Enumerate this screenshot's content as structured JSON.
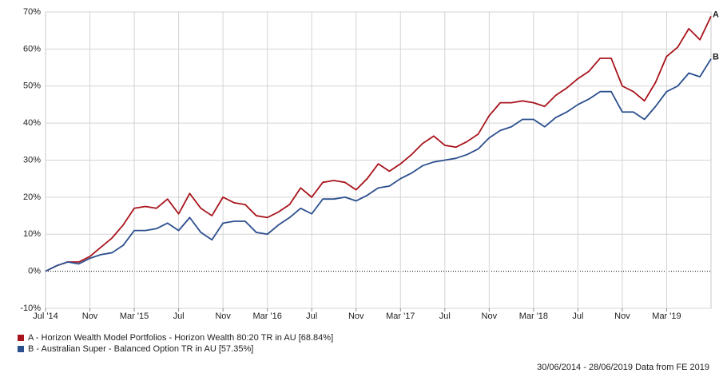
{
  "chart_data": {
    "type": "line",
    "categories": [
      "Jul '14",
      null,
      null,
      null,
      "Nov",
      null,
      null,
      null,
      "Mar '15",
      null,
      null,
      null,
      "Jul",
      null,
      null,
      null,
      "Nov",
      null,
      null,
      null,
      "Mar '16",
      null,
      null,
      null,
      "Jul",
      null,
      null,
      null,
      "Nov",
      null,
      null,
      null,
      "Mar '17",
      null,
      null,
      null,
      "Jul",
      null,
      null,
      null,
      "Nov",
      null,
      null,
      null,
      "Mar '18",
      null,
      null,
      null,
      "Jul",
      null,
      null,
      null,
      "Nov",
      null,
      null,
      null,
      "Mar '19",
      null,
      null,
      null,
      null
    ],
    "series": [
      {
        "name": "A - Horizon Wealth Model Portfolios - Horizon Wealth 80:20 TR in AU [68.84%]",
        "end_label": "A",
        "color": "#a8141c",
        "values": [
          0,
          1.5,
          2.5,
          2.5,
          4,
          6.5,
          9,
          12.5,
          17,
          17.5,
          17,
          19.5,
          15.5,
          21,
          17,
          15,
          20,
          18.5,
          18,
          15,
          14.5,
          16,
          18,
          22.5,
          20,
          24,
          24.5,
          24,
          22,
          25,
          29,
          27,
          29,
          31.5,
          34.5,
          36.5,
          34,
          33.5,
          35,
          37,
          42,
          45.5,
          45.5,
          46,
          45.5,
          44.5,
          47.5,
          49.5,
          52,
          54,
          57.5,
          57.5,
          50,
          48.5,
          46,
          51,
          58,
          60.5,
          65.5,
          62.5,
          68.84
        ]
      },
      {
        "name": "B - Australian Super - Balanced Option TR in AU [57.35%]",
        "end_label": "B",
        "color": "#2c4f8e",
        "values": [
          0,
          1.5,
          2.5,
          2,
          3.5,
          4.5,
          5,
          7,
          11,
          11,
          11.5,
          13,
          11,
          14.5,
          10.5,
          8.5,
          13,
          13.5,
          13.5,
          10.5,
          10,
          12.5,
          14.5,
          17,
          15.5,
          19.5,
          19.5,
          20,
          19,
          20.5,
          22.5,
          23,
          25,
          26.5,
          28.5,
          29.5,
          30,
          30.5,
          31.5,
          33,
          36,
          38,
          39,
          41,
          41,
          39,
          41.5,
          43,
          45,
          46.5,
          48.5,
          48.5,
          43,
          43,
          41,
          44.5,
          48.5,
          50,
          53.5,
          52.5,
          57.35
        ]
      }
    ],
    "ylim": [
      -10,
      70
    ],
    "yticks": [
      {
        "value": -10,
        "label": "-10%"
      },
      {
        "value": 0,
        "label": "0%"
      },
      {
        "value": 10,
        "label": "10%"
      },
      {
        "value": 20,
        "label": "20%"
      },
      {
        "value": 30,
        "label": "30%"
      },
      {
        "value": 40,
        "label": "40%"
      },
      {
        "value": 50,
        "label": "50%"
      },
      {
        "value": 60,
        "label": "60%"
      },
      {
        "value": 70,
        "label": "70%"
      }
    ],
    "grid": true,
    "footer": "30/06/2014 - 28/06/2019 Data from FE 2019"
  }
}
